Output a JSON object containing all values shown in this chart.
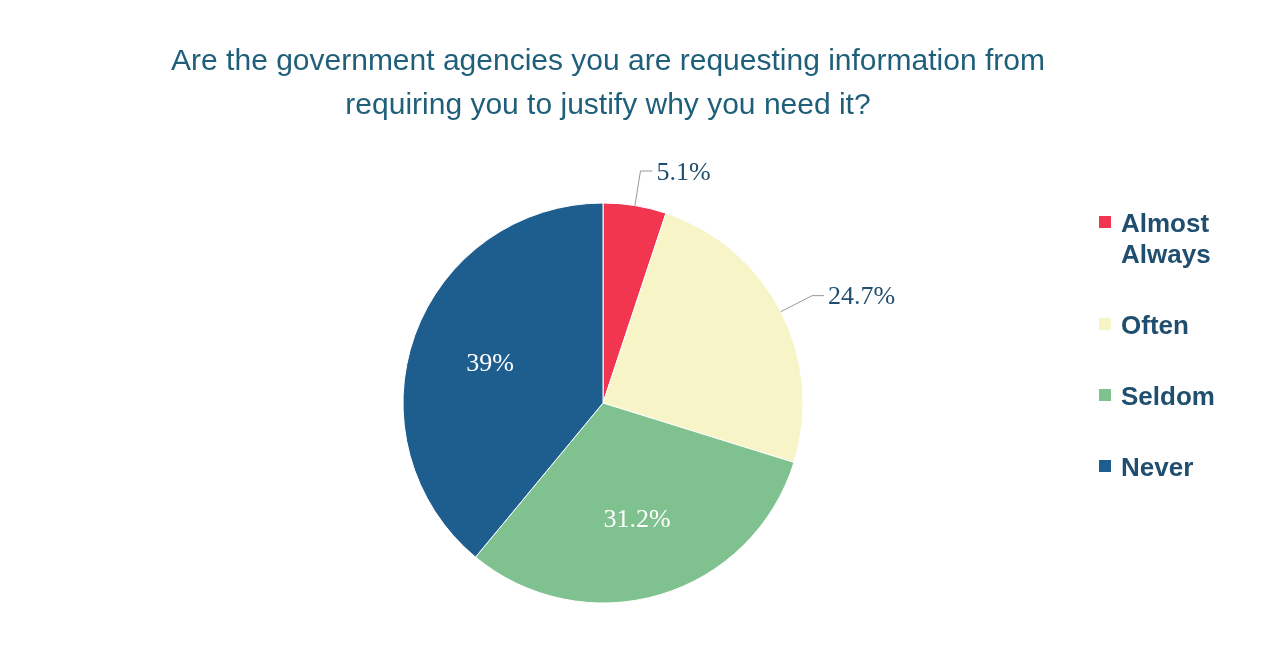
{
  "chart_data": {
    "type": "pie",
    "title": "Are the government agencies you are requesting information from requiring you to justify why you need it?",
    "categories": [
      "Almost Always",
      "Often",
      "Seldom",
      "Never"
    ],
    "values": [
      5.1,
      24.7,
      31.2,
      39
    ],
    "colors": [
      "#f2364f",
      "#f7f5c8",
      "#7fc18f",
      "#1e5e8f"
    ],
    "value_labels": [
      "5.1%",
      "24.7%",
      "31.2%",
      "39%"
    ],
    "legend": "right"
  }
}
